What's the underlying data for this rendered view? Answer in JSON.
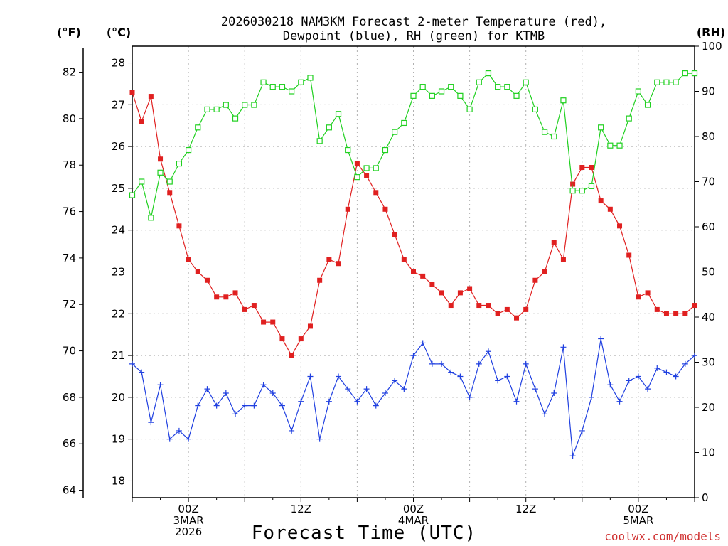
{
  "chart_data": {
    "type": "line",
    "title_lines": [
      "2026030218 NAM3KM Forecast 2-meter Temperature (red),",
      "Dewpoint (blue), RH (green) for KTMB"
    ],
    "xlabel": "Forecast Time (UTC)",
    "credit": "coolwx.com/models",
    "unit_labels": {
      "fahrenheit": "(°F)",
      "celsius": "(°C)",
      "rh": "(RH)"
    },
    "x_range_hours": [
      0,
      60
    ],
    "x_ticks": [
      {
        "hour": 6,
        "lines": [
          "00Z",
          "3MAR",
          "2026"
        ]
      },
      {
        "hour": 18,
        "lines": [
          "12Z"
        ]
      },
      {
        "hour": 30,
        "lines": [
          "00Z",
          "4MAR"
        ]
      },
      {
        "hour": 42,
        "lines": [
          "12Z"
        ]
      },
      {
        "hour": 54,
        "lines": [
          "00Z",
          "5MAR"
        ]
      }
    ],
    "celsius_axis": {
      "range": [
        17.6,
        28.4
      ],
      "ticks": [
        18,
        19,
        20,
        21,
        22,
        23,
        24,
        25,
        26,
        27,
        28
      ]
    },
    "fahrenheit_ticks": [
      64,
      66,
      68,
      70,
      72,
      74,
      76,
      78,
      80,
      82
    ],
    "rh_axis": {
      "range": [
        0,
        100
      ],
      "ticks": [
        0,
        10,
        20,
        30,
        40,
        50,
        60,
        70,
        80,
        90,
        100
      ]
    },
    "series": [
      {
        "name": "2-meter Temperature",
        "units": "°C",
        "axis": "celsius",
        "color": "#e02020",
        "marker": "filled-square",
        "values": [
          27.3,
          26.6,
          27.2,
          25.7,
          24.9,
          24.1,
          23.3,
          23.0,
          22.8,
          22.4,
          22.4,
          22.5,
          22.1,
          22.2,
          21.8,
          21.8,
          21.4,
          21.0,
          21.4,
          21.7,
          22.8,
          23.3,
          23.2,
          24.5,
          25.6,
          25.3,
          24.9,
          24.5,
          23.9,
          23.3,
          23.0,
          22.9,
          22.7,
          22.5,
          22.2,
          22.5,
          22.6,
          22.2,
          22.2,
          22.0,
          22.1,
          21.9,
          22.1,
          22.8,
          23.0,
          23.7,
          23.3,
          25.1,
          25.5,
          25.5,
          24.7,
          24.5,
          24.1,
          23.4,
          22.4,
          22.5,
          22.1,
          22.0,
          22.0,
          22.0,
          22.2
        ]
      },
      {
        "name": "Dewpoint",
        "units": "°C",
        "axis": "celsius",
        "color": "#2040e0",
        "marker": "plus",
        "values": [
          20.8,
          20.6,
          19.4,
          20.3,
          19.0,
          19.2,
          19.0,
          19.8,
          20.2,
          19.8,
          20.1,
          19.6,
          19.8,
          19.8,
          20.3,
          20.1,
          19.8,
          19.2,
          19.9,
          20.5,
          19.0,
          19.9,
          20.5,
          20.2,
          19.9,
          20.2,
          19.8,
          20.1,
          20.4,
          20.2,
          21.0,
          21.3,
          20.8,
          20.8,
          20.6,
          20.5,
          20.0,
          20.8,
          21.1,
          20.4,
          20.5,
          19.9,
          20.8,
          20.2,
          19.6,
          20.1,
          21.2,
          18.6,
          19.2,
          20.0,
          21.4,
          20.3,
          19.9,
          20.4,
          20.5,
          20.2,
          20.7,
          20.6,
          20.5,
          20.8,
          21.0
        ]
      },
      {
        "name": "RH",
        "units": "%",
        "axis": "rh",
        "color": "#20d020",
        "marker": "open-square",
        "values": [
          67,
          70,
          62,
          72,
          70,
          74,
          77,
          82,
          86,
          86,
          87,
          84,
          87,
          87,
          92,
          91,
          91,
          90,
          92,
          93,
          79,
          82,
          85,
          77,
          71,
          73,
          73,
          77,
          81,
          83,
          89,
          91,
          89,
          90,
          91,
          89,
          86,
          92,
          94,
          91,
          91,
          89,
          92,
          86,
          81,
          80,
          88,
          68,
          68,
          69,
          82,
          78,
          78,
          84,
          90,
          87,
          92,
          92,
          92,
          94,
          94
        ]
      }
    ]
  }
}
